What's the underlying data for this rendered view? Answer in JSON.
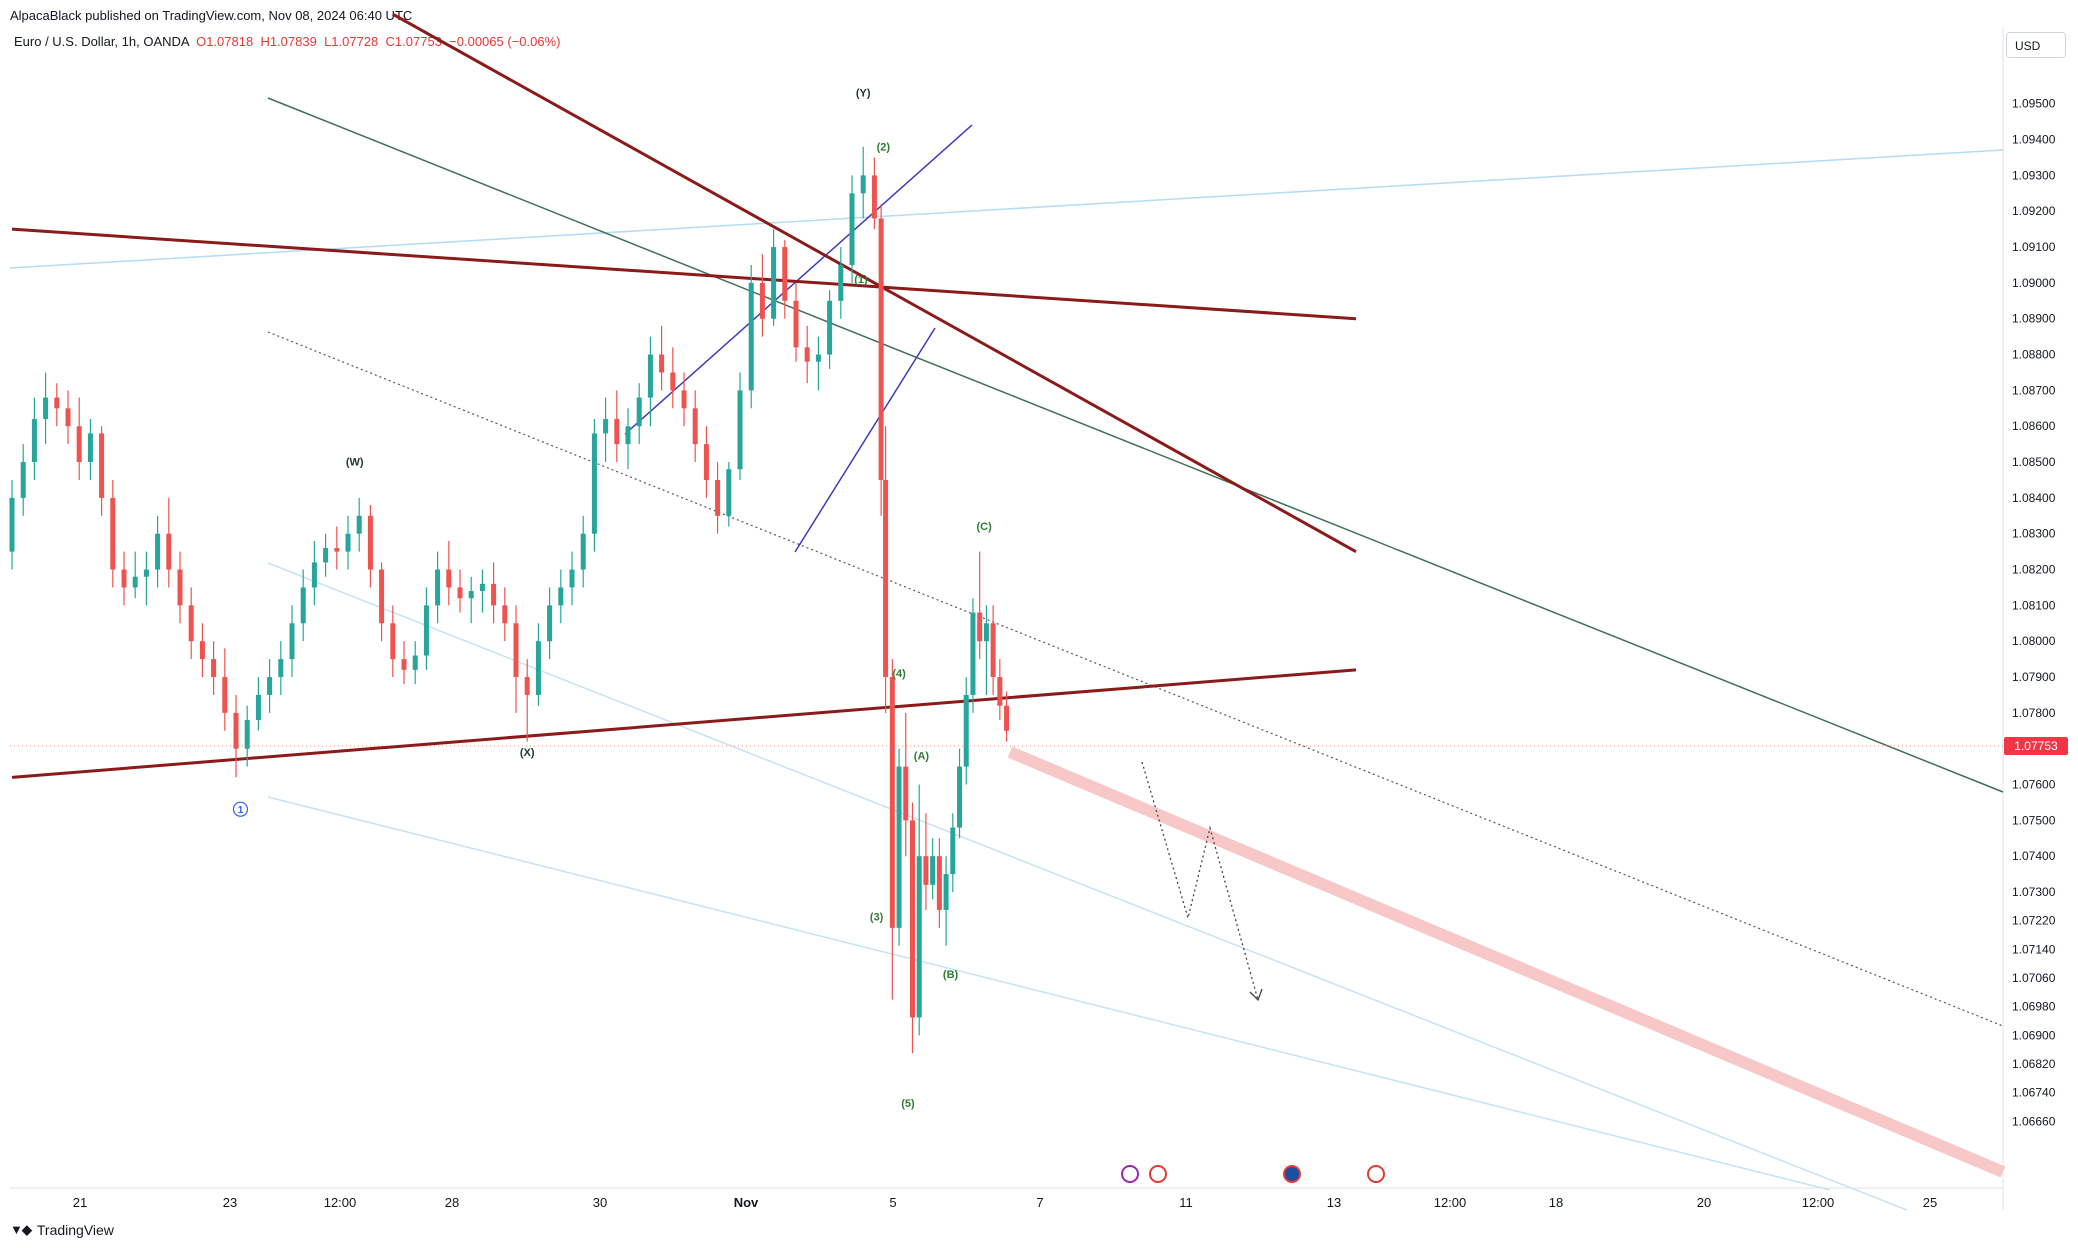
{
  "header": {
    "publish_line": "AlpacaBlack published on TradingView.com, Nov 08, 2024 06:40 UTC",
    "symbol": "Euro / U.S. Dollar, 1h, OANDA",
    "open": "O1.07818",
    "high": "H1.07839",
    "low": "L1.07728",
    "close": "C1.07753",
    "change": "−0.00065 (−0.06%)",
    "currency": "USD"
  },
  "footer": {
    "brand": "TradingView"
  },
  "colors": {
    "up": "#26a69a",
    "down": "#ef5350",
    "trendline": "#8b1a1a",
    "channel": "#3f6e55",
    "light_channel": "#90caf9",
    "wedge": "#3f3ab8",
    "price_tag": "#f23645",
    "wave_label": "#2e7d32"
  },
  "chart_data": {
    "type": "candlestick",
    "symbol": "EURUSD",
    "interval": "1h",
    "ylim": [
      1.0658,
      1.0965
    ],
    "y_ticks": [
      "1.09500",
      "1.09400",
      "1.09300",
      "1.09200",
      "1.09100",
      "1.09000",
      "1.08900",
      "1.08800",
      "1.08700",
      "1.08600",
      "1.08500",
      "1.08400",
      "1.08300",
      "1.08200",
      "1.08100",
      "1.08000",
      "1.07900",
      "1.07800",
      "1.07700",
      "1.07600",
      "1.07500",
      "1.07400",
      "1.07300",
      "1.07220",
      "1.07140",
      "1.07060",
      "1.06980",
      "1.06900",
      "1.06820",
      "1.06740",
      "1.06660"
    ],
    "x_ticks": [
      "21",
      "23",
      "12:00",
      "28",
      "30",
      "Nov",
      "5",
      "7",
      "11",
      "13",
      "12:00",
      "18",
      "20",
      "12:00",
      "25"
    ],
    "last_price": "1.07753",
    "wave_labels": [
      {
        "text": "(W)",
        "t": 15.3,
        "price": 1.0849
      },
      {
        "text": "(X)",
        "t": 23.0,
        "price": 1.0768
      },
      {
        "text": "(Y)",
        "t": 38.0,
        "price": 1.0952
      },
      {
        "text": "(2)",
        "t": 38.9,
        "price": 1.0937
      },
      {
        "text": "(1)",
        "t": 37.9,
        "price": 1.09
      },
      {
        "text": "(3)",
        "t": 38.6,
        "price": 1.0722
      },
      {
        "text": "(4)",
        "t": 39.6,
        "price": 1.079
      },
      {
        "text": "(5)",
        "t": 40.0,
        "price": 1.067
      },
      {
        "text": "(A)",
        "t": 40.6,
        "price": 1.0767
      },
      {
        "text": "(B)",
        "t": 41.9,
        "price": 1.0706
      },
      {
        "text": "(C)",
        "t": 43.4,
        "price": 1.0831
      },
      {
        "text": "1",
        "t": 10.2,
        "price": 1.0752
      }
    ],
    "candles": [
      [
        0.0,
        1.0825,
        1.0845,
        1.082,
        1.084
      ],
      [
        0.5,
        1.084,
        1.0855,
        1.0835,
        1.085
      ],
      [
        1.0,
        1.085,
        1.0868,
        1.0845,
        1.0862
      ],
      [
        1.5,
        1.0862,
        1.0875,
        1.0855,
        1.0868
      ],
      [
        2.0,
        1.0868,
        1.0872,
        1.086,
        1.0865
      ],
      [
        2.5,
        1.0865,
        1.087,
        1.0855,
        1.086
      ],
      [
        3.0,
        1.086,
        1.0868,
        1.0845,
        1.085
      ],
      [
        3.5,
        1.085,
        1.0862,
        1.0845,
        1.0858
      ],
      [
        4.0,
        1.0858,
        1.086,
        1.0835,
        1.084
      ],
      [
        4.5,
        1.084,
        1.0845,
        1.0815,
        1.082
      ],
      [
        5.0,
        1.082,
        1.0825,
        1.081,
        1.0815
      ],
      [
        5.5,
        1.0815,
        1.0825,
        1.0812,
        1.0818
      ],
      [
        6.0,
        1.0818,
        1.0825,
        1.081,
        1.082
      ],
      [
        6.5,
        1.082,
        1.0835,
        1.0815,
        1.083
      ],
      [
        7.0,
        1.083,
        1.084,
        1.0815,
        1.082
      ],
      [
        7.5,
        1.082,
        1.0825,
        1.0805,
        1.081
      ],
      [
        8.0,
        1.081,
        1.0815,
        1.0795,
        1.08
      ],
      [
        8.5,
        1.08,
        1.0805,
        1.079,
        1.0795
      ],
      [
        9.0,
        1.0795,
        1.08,
        1.0785,
        1.079
      ],
      [
        9.5,
        1.079,
        1.0798,
        1.0775,
        1.078
      ],
      [
        10.0,
        1.078,
        1.0785,
        1.0762,
        1.077
      ],
      [
        10.5,
        1.077,
        1.0782,
        1.0765,
        1.0778
      ],
      [
        11.0,
        1.0778,
        1.079,
        1.0775,
        1.0785
      ],
      [
        11.5,
        1.0785,
        1.0795,
        1.078,
        1.079
      ],
      [
        12.0,
        1.079,
        1.08,
        1.0785,
        1.0795
      ],
      [
        12.5,
        1.0795,
        1.081,
        1.079,
        1.0805
      ],
      [
        13.0,
        1.0805,
        1.082,
        1.08,
        1.0815
      ],
      [
        13.5,
        1.0815,
        1.0828,
        1.081,
        1.0822
      ],
      [
        14.0,
        1.0822,
        1.083,
        1.0818,
        1.0826
      ],
      [
        14.5,
        1.0826,
        1.0832,
        1.082,
        1.0825
      ],
      [
        15.0,
        1.0825,
        1.0835,
        1.082,
        1.083
      ],
      [
        15.5,
        1.083,
        1.084,
        1.0825,
        1.0835
      ],
      [
        16.0,
        1.0835,
        1.0838,
        1.0815,
        1.082
      ],
      [
        16.5,
        1.082,
        1.0822,
        1.08,
        1.0805
      ],
      [
        17.0,
        1.0805,
        1.081,
        1.079,
        1.0795
      ],
      [
        17.5,
        1.0795,
        1.08,
        1.0788,
        1.0792
      ],
      [
        18.0,
        1.0792,
        1.08,
        1.0788,
        1.0796
      ],
      [
        18.5,
        1.0796,
        1.0815,
        1.0792,
        1.081
      ],
      [
        19.0,
        1.081,
        1.0825,
        1.0805,
        1.082
      ],
      [
        19.5,
        1.082,
        1.0828,
        1.081,
        1.0815
      ],
      [
        20.0,
        1.0815,
        1.082,
        1.0808,
        1.0812
      ],
      [
        20.5,
        1.0812,
        1.0818,
        1.0805,
        1.0814
      ],
      [
        21.0,
        1.0814,
        1.082,
        1.0808,
        1.0816
      ],
      [
        21.5,
        1.0816,
        1.0822,
        1.0805,
        1.081
      ],
      [
        22.0,
        1.081,
        1.0815,
        1.08,
        1.0805
      ],
      [
        22.5,
        1.0805,
        1.081,
        1.078,
        1.079
      ],
      [
        23.0,
        1.079,
        1.0795,
        1.0772,
        1.0785
      ],
      [
        23.5,
        1.0785,
        1.0805,
        1.0782,
        1.08
      ],
      [
        24.0,
        1.08,
        1.0815,
        1.0795,
        1.081
      ],
      [
        24.5,
        1.081,
        1.082,
        1.0805,
        1.0815
      ],
      [
        25.0,
        1.0815,
        1.0825,
        1.081,
        1.082
      ],
      [
        25.5,
        1.082,
        1.0835,
        1.0815,
        1.083
      ],
      [
        26.0,
        1.083,
        1.0862,
        1.0825,
        1.0858
      ],
      [
        26.5,
        1.0858,
        1.0868,
        1.085,
        1.0862
      ],
      [
        27.0,
        1.0862,
        1.087,
        1.085,
        1.0855
      ],
      [
        27.5,
        1.0855,
        1.0865,
        1.0848,
        1.086
      ],
      [
        28.0,
        1.086,
        1.0872,
        1.0855,
        1.0868
      ],
      [
        28.5,
        1.0868,
        1.0885,
        1.086,
        1.088
      ],
      [
        29.0,
        1.088,
        1.0888,
        1.087,
        1.0875
      ],
      [
        29.5,
        1.0875,
        1.0882,
        1.0865,
        1.087
      ],
      [
        30.0,
        1.087,
        1.0875,
        1.086,
        1.0865
      ],
      [
        30.5,
        1.0865,
        1.087,
        1.085,
        1.0855
      ],
      [
        31.0,
        1.0855,
        1.086,
        1.084,
        1.0845
      ],
      [
        31.5,
        1.0845,
        1.085,
        1.083,
        1.0835
      ],
      [
        32.0,
        1.0835,
        1.085,
        1.0832,
        1.0848
      ],
      [
        32.5,
        1.0848,
        1.0875,
        1.0845,
        1.087
      ],
      [
        33.0,
        1.087,
        1.0905,
        1.0865,
        1.09
      ],
      [
        33.5,
        1.09,
        1.0908,
        1.0885,
        1.089
      ],
      [
        34.0,
        1.089,
        1.0915,
        1.0888,
        1.091
      ],
      [
        34.5,
        1.091,
        1.0912,
        1.089,
        1.0895
      ],
      [
        35.0,
        1.0895,
        1.09,
        1.0878,
        1.0882
      ],
      [
        35.5,
        1.0882,
        1.0888,
        1.0872,
        1.0878
      ],
      [
        36.0,
        1.0878,
        1.0885,
        1.087,
        1.088
      ],
      [
        36.5,
        1.088,
        1.0898,
        1.0876,
        1.0895
      ],
      [
        37.0,
        1.0895,
        1.091,
        1.089,
        1.0905
      ],
      [
        37.5,
        1.0905,
        1.093,
        1.09,
        1.0925
      ],
      [
        38.0,
        1.0925,
        1.0938,
        1.0918,
        1.093
      ],
      [
        38.5,
        1.093,
        1.0935,
        1.0915,
        1.0918
      ],
      [
        38.8,
        1.0918,
        1.0922,
        1.0835,
        1.0845
      ],
      [
        39.0,
        1.0845,
        1.086,
        1.078,
        1.079
      ],
      [
        39.3,
        1.079,
        1.0795,
        1.07,
        1.072
      ],
      [
        39.6,
        1.072,
        1.077,
        1.0715,
        1.0765
      ],
      [
        39.9,
        1.0765,
        1.078,
        1.074,
        1.075
      ],
      [
        40.2,
        1.075,
        1.0755,
        1.0685,
        1.0695
      ],
      [
        40.5,
        1.0695,
        1.076,
        1.069,
        1.074
      ],
      [
        40.8,
        1.074,
        1.0752,
        1.0725,
        1.0732
      ],
      [
        41.1,
        1.0732,
        1.0745,
        1.0728,
        1.074
      ],
      [
        41.4,
        1.074,
        1.0745,
        1.072,
        1.0725
      ],
      [
        41.7,
        1.0725,
        1.074,
        1.0715,
        1.0735
      ],
      [
        42.0,
        1.0735,
        1.0752,
        1.073,
        1.0748
      ],
      [
        42.3,
        1.0748,
        1.077,
        1.0745,
        1.0765
      ],
      [
        42.6,
        1.0765,
        1.079,
        1.076,
        1.0785
      ],
      [
        42.9,
        1.0785,
        1.0812,
        1.078,
        1.0808
      ],
      [
        43.2,
        1.0808,
        1.0825,
        1.0795,
        1.08
      ],
      [
        43.5,
        1.08,
        1.081,
        1.0785,
        1.0805
      ],
      [
        43.8,
        1.0805,
        1.081,
        1.0785,
        1.079
      ],
      [
        44.1,
        1.079,
        1.0795,
        1.0778,
        1.0782
      ],
      [
        44.4,
        1.0782,
        1.0786,
        1.0772,
        1.0775
      ]
    ],
    "lines": [
      {
        "name": "upper-resistance",
        "from": [
          17.0,
          1.0975
        ],
        "to": [
          60.0,
          1.0825
        ],
        "color": "trendline"
      },
      {
        "name": "horizontal-resistance",
        "from": [
          0.0,
          1.0915
        ],
        "to": [
          60.0,
          1.089
        ],
        "color": "trendline"
      },
      {
        "name": "lower-support",
        "from": [
          0.0,
          1.0762
        ],
        "to": [
          60.0,
          1.0792
        ],
        "color": "trendline"
      }
    ]
  }
}
